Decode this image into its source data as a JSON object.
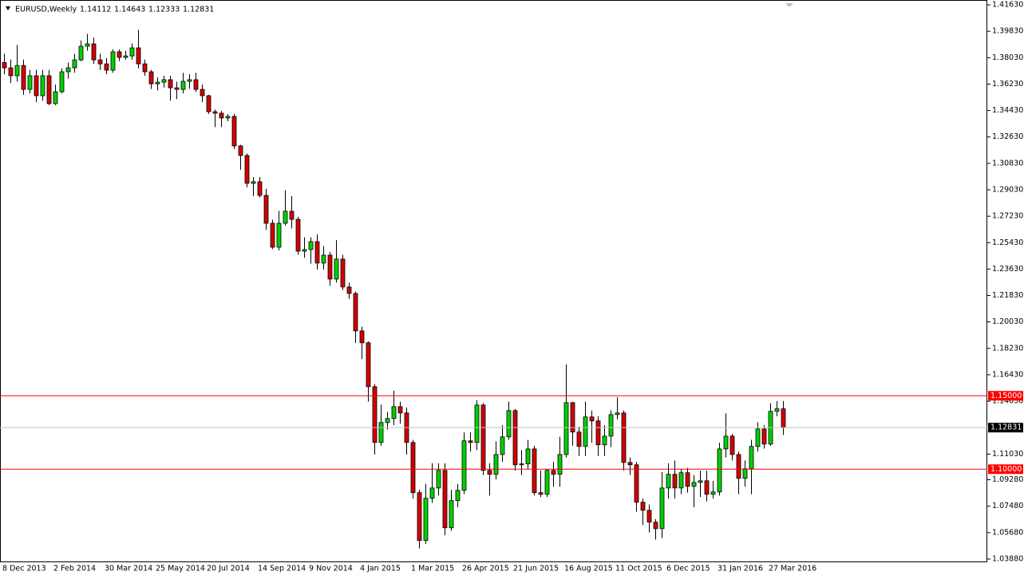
{
  "chart_data": {
    "type": "candlestick",
    "title": "EURUSD,Weekly",
    "categories": [
      "8 Dec 2013",
      null,
      null,
      null,
      null,
      null,
      null,
      null,
      "2 Feb 2014",
      null,
      null,
      null,
      null,
      null,
      null,
      null,
      "30 Mar 2014",
      null,
      null,
      null,
      null,
      null,
      null,
      null,
      "25 May 2014",
      null,
      null,
      null,
      null,
      null,
      null,
      null,
      "20 Jul 2014",
      null,
      null,
      null,
      null,
      null,
      null,
      null,
      "14 Sep 2014",
      null,
      null,
      null,
      null,
      null,
      null,
      null,
      "9 Nov 2014",
      null,
      null,
      null,
      null,
      null,
      null,
      null,
      "4 Jan 2015",
      null,
      null,
      null,
      null,
      null,
      null,
      null,
      "1 Mar 2015",
      null,
      null,
      null,
      null,
      null,
      null,
      null,
      "26 Apr 2015",
      null,
      null,
      null,
      null,
      null,
      null,
      null,
      "21 Jun 2015",
      null,
      null,
      null,
      null,
      null,
      null,
      null,
      "16 Aug 2015",
      null,
      null,
      null,
      null,
      null,
      null,
      null,
      "11 Oct 2015",
      null,
      null,
      null,
      null,
      null,
      null,
      null,
      "6 Dec 2015",
      null,
      null,
      null,
      null,
      null,
      null,
      null,
      "31 Jan 2016",
      null,
      null,
      null,
      null,
      null,
      null,
      null,
      "27 Mar 2016",
      null,
      null
    ],
    "open": [
      1.377,
      1.3734,
      1.368,
      1.375,
      1.3587,
      1.368,
      1.3544,
      1.368,
      1.349,
      1.3571,
      1.3707,
      1.3734,
      1.3788,
      1.3881,
      1.3897,
      1.3788,
      1.3761,
      1.3718,
      1.3843,
      1.3805,
      1.3815,
      1.387,
      1.3761,
      1.3707,
      1.3625,
      1.3636,
      1.3653,
      1.3598,
      1.3587,
      1.3642,
      1.3653,
      1.3587,
      1.3544,
      1.3435,
      1.3425,
      1.3392,
      1.3403,
      1.3202,
      1.3137,
      1.2947,
      1.2958,
      1.2865,
      1.2675,
      1.2512,
      1.2675,
      1.2757,
      1.2702,
      1.2485,
      1.2496,
      1.255,
      1.2404,
      1.2458,
      1.2295,
      1.2431,
      1.2241,
      1.2197,
      1.1942,
      1.1861,
      1.1562,
      1.1182,
      1.1318,
      1.1345,
      1.1426,
      1.1383,
      1.1182,
      1.084,
      1.0514,
      1.0802,
      1.0872,
      1.0992,
      1.0601,
      1.0786,
      1.0856,
      1.1193,
      1.1182,
      1.1437,
      1.0992,
      1.0965,
      1.11,
      1.122,
      1.1399,
      1.103,
      1.1036,
      1.1138,
      1.084,
      1.0829,
      1.0992,
      1.0965,
      1.11,
      1.1453,
      1.1253,
      1.1155,
      1.1356,
      1.1329,
      1.1166,
      1.1225,
      1.1372,
      1.1383,
      1.1046,
      1.103,
      1.0775,
      1.072,
      1.0639,
      1.0595,
      1.0872,
      1.0965,
      1.0872,
      1.0976,
      1.0883,
      1.091,
      1.0921,
      1.0829,
      1.0845,
      1.1138,
      1.1225,
      1.11,
      1.0938,
      1.1003,
      1.1155,
      1.1274,
      1.1171,
      1.1394,
      1.14112
    ],
    "high": [
      1.383,
      1.379,
      1.389,
      1.379,
      1.372,
      1.372,
      1.372,
      1.372,
      1.362,
      1.373,
      1.377,
      1.383,
      1.392,
      1.3965,
      1.394,
      1.383,
      1.38,
      1.386,
      1.386,
      1.385,
      1.39,
      1.3993,
      1.379,
      1.372,
      1.367,
      1.368,
      1.368,
      1.364,
      1.37,
      1.369,
      1.37,
      1.362,
      1.355,
      1.345,
      1.344,
      1.342,
      1.342,
      1.321,
      1.315,
      1.299,
      1.299,
      1.291,
      1.27,
      1.276,
      1.29,
      1.286,
      1.272,
      1.258,
      1.258,
      1.26,
      1.252,
      1.248,
      1.256,
      1.246,
      1.227,
      1.221,
      1.197,
      1.187,
      1.158,
      1.144,
      1.139,
      1.1535,
      1.146,
      1.142,
      1.12,
      1.086,
      1.09,
      1.104,
      1.104,
      1.104,
      1.086,
      1.09,
      1.125,
      1.125,
      1.147,
      1.145,
      1.104,
      1.119,
      1.13,
      1.146,
      1.141,
      1.113,
      1.12,
      1.116,
      1.099,
      1.1,
      1.105,
      1.122,
      1.1714,
      1.146,
      1.129,
      1.146,
      1.14,
      1.136,
      1.13,
      1.14,
      1.149,
      1.14,
      1.108,
      1.105,
      1.08,
      1.076,
      1.066,
      1.098,
      1.104,
      1.106,
      1.1,
      1.101,
      1.096,
      1.099,
      1.099,
      1.092,
      1.118,
      1.138,
      1.124,
      1.112,
      1.106,
      1.12,
      1.132,
      1.13,
      1.145,
      1.1465,
      1.14643
    ],
    "low": [
      1.369,
      1.363,
      1.364,
      1.355,
      1.356,
      1.35,
      1.351,
      1.348,
      1.348,
      1.356,
      1.366,
      1.37,
      1.378,
      1.385,
      1.376,
      1.372,
      1.369,
      1.37,
      1.378,
      1.379,
      1.379,
      1.373,
      1.368,
      1.359,
      1.358,
      1.36,
      1.351,
      1.352,
      1.356,
      1.359,
      1.357,
      1.35,
      1.342,
      1.333,
      1.333,
      1.337,
      1.318,
      1.304,
      1.292,
      1.286,
      1.285,
      1.263,
      1.25,
      1.249,
      1.266,
      1.264,
      1.246,
      1.244,
      1.24,
      1.236,
      1.236,
      1.225,
      1.227,
      1.222,
      1.216,
      1.186,
      1.175,
      1.146,
      1.11,
      1.116,
      1.127,
      1.13,
      1.131,
      1.11,
      1.08,
      1.046,
      1.049,
      1.077,
      1.082,
      1.055,
      1.058,
      1.074,
      1.083,
      1.112,
      1.113,
      1.096,
      1.082,
      1.093,
      1.105,
      1.12,
      1.099,
      1.096,
      1.1,
      1.082,
      1.081,
      1.081,
      1.088,
      1.088,
      1.108,
      1.116,
      1.109,
      1.109,
      1.118,
      1.109,
      1.109,
      1.115,
      1.134,
      1.099,
      1.096,
      1.071,
      1.062,
      1.057,
      1.052,
      1.053,
      1.08,
      1.08,
      1.083,
      1.084,
      1.074,
      1.081,
      1.078,
      1.08,
      1.082,
      1.108,
      1.106,
      1.083,
      1.088,
      1.083,
      1.112,
      1.114,
      1.116,
      1.136,
      1.12333
    ],
    "close": [
      1.3734,
      1.368,
      1.375,
      1.3587,
      1.368,
      1.3544,
      1.368,
      1.349,
      1.3571,
      1.3707,
      1.3734,
      1.3788,
      1.3881,
      1.3897,
      1.3788,
      1.3761,
      1.3718,
      1.3843,
      1.3805,
      1.3815,
      1.387,
      1.3761,
      1.3707,
      1.3625,
      1.3636,
      1.3653,
      1.3598,
      1.3587,
      1.3642,
      1.3653,
      1.3587,
      1.3544,
      1.3435,
      1.3425,
      1.3392,
      1.3403,
      1.3202,
      1.3137,
      1.2947,
      1.2958,
      1.2865,
      1.2675,
      1.2512,
      1.2675,
      1.2757,
      1.2702,
      1.2485,
      1.2496,
      1.255,
      1.2404,
      1.2458,
      1.2295,
      1.2431,
      1.2241,
      1.2197,
      1.1942,
      1.1861,
      1.1562,
      1.1182,
      1.1318,
      1.1345,
      1.1426,
      1.1383,
      1.1182,
      1.084,
      1.0514,
      1.0802,
      1.0872,
      1.0992,
      1.0601,
      1.0786,
      1.0856,
      1.1193,
      1.1182,
      1.1437,
      1.0992,
      1.0965,
      1.11,
      1.122,
      1.1399,
      1.103,
      1.1036,
      1.1138,
      1.084,
      1.0829,
      1.0992,
      1.0965,
      1.11,
      1.1453,
      1.1253,
      1.1155,
      1.1356,
      1.1329,
      1.1166,
      1.1225,
      1.1372,
      1.1383,
      1.1046,
      1.103,
      1.0775,
      1.072,
      1.0639,
      1.0595,
      1.0872,
      1.0965,
      1.0872,
      1.0976,
      1.0883,
      1.091,
      1.0921,
      1.0829,
      1.0845,
      1.1138,
      1.1225,
      1.11,
      1.0938,
      1.1003,
      1.1155,
      1.1274,
      1.1171,
      1.1394,
      1.14112,
      1.12831
    ],
    "up_color": "#00d000",
    "down_color": "#d40000",
    "price_line_color": "#c0c0c0",
    "ylim": [
      1.0366,
      1.4196
    ],
    "yticks": [
      {
        "value": 1.4163,
        "label": "1.41630"
      },
      {
        "value": 1.3983,
        "label": "1.39830"
      },
      {
        "value": 1.3803,
        "label": "1.38030"
      },
      {
        "value": 1.3623,
        "label": "1.36230"
      },
      {
        "value": 1.3443,
        "label": "1.34430"
      },
      {
        "value": 1.3263,
        "label": "1.32630"
      },
      {
        "value": 1.3083,
        "label": "1.30830"
      },
      {
        "value": 1.2903,
        "label": "1.29030"
      },
      {
        "value": 1.2723,
        "label": "1.27230"
      },
      {
        "value": 1.2543,
        "label": "1.25430"
      },
      {
        "value": 1.2363,
        "label": "1.23630"
      },
      {
        "value": 1.2183,
        "label": "1.21830"
      },
      {
        "value": 1.2003,
        "label": "1.20030"
      },
      {
        "value": 1.1823,
        "label": "1.18230"
      },
      {
        "value": 1.1643,
        "label": "1.16430"
      },
      {
        "value": 1.1463,
        "label": "1.14630"
      },
      {
        "value": 1.1103,
        "label": "1.11030"
      },
      {
        "value": 1.0928,
        "label": "1.09280"
      },
      {
        "value": 1.0748,
        "label": "1.07480"
      },
      {
        "value": 1.0568,
        "label": "1.05680"
      },
      {
        "value": 1.0388,
        "label": "1.03880"
      }
    ],
    "hlines": [
      {
        "value": 1.15,
        "label": "1.15000",
        "color": "#ff0000"
      },
      {
        "value": 1.1,
        "label": "1.10000",
        "color": "#ff0000"
      }
    ],
    "grid": false
  }
}
